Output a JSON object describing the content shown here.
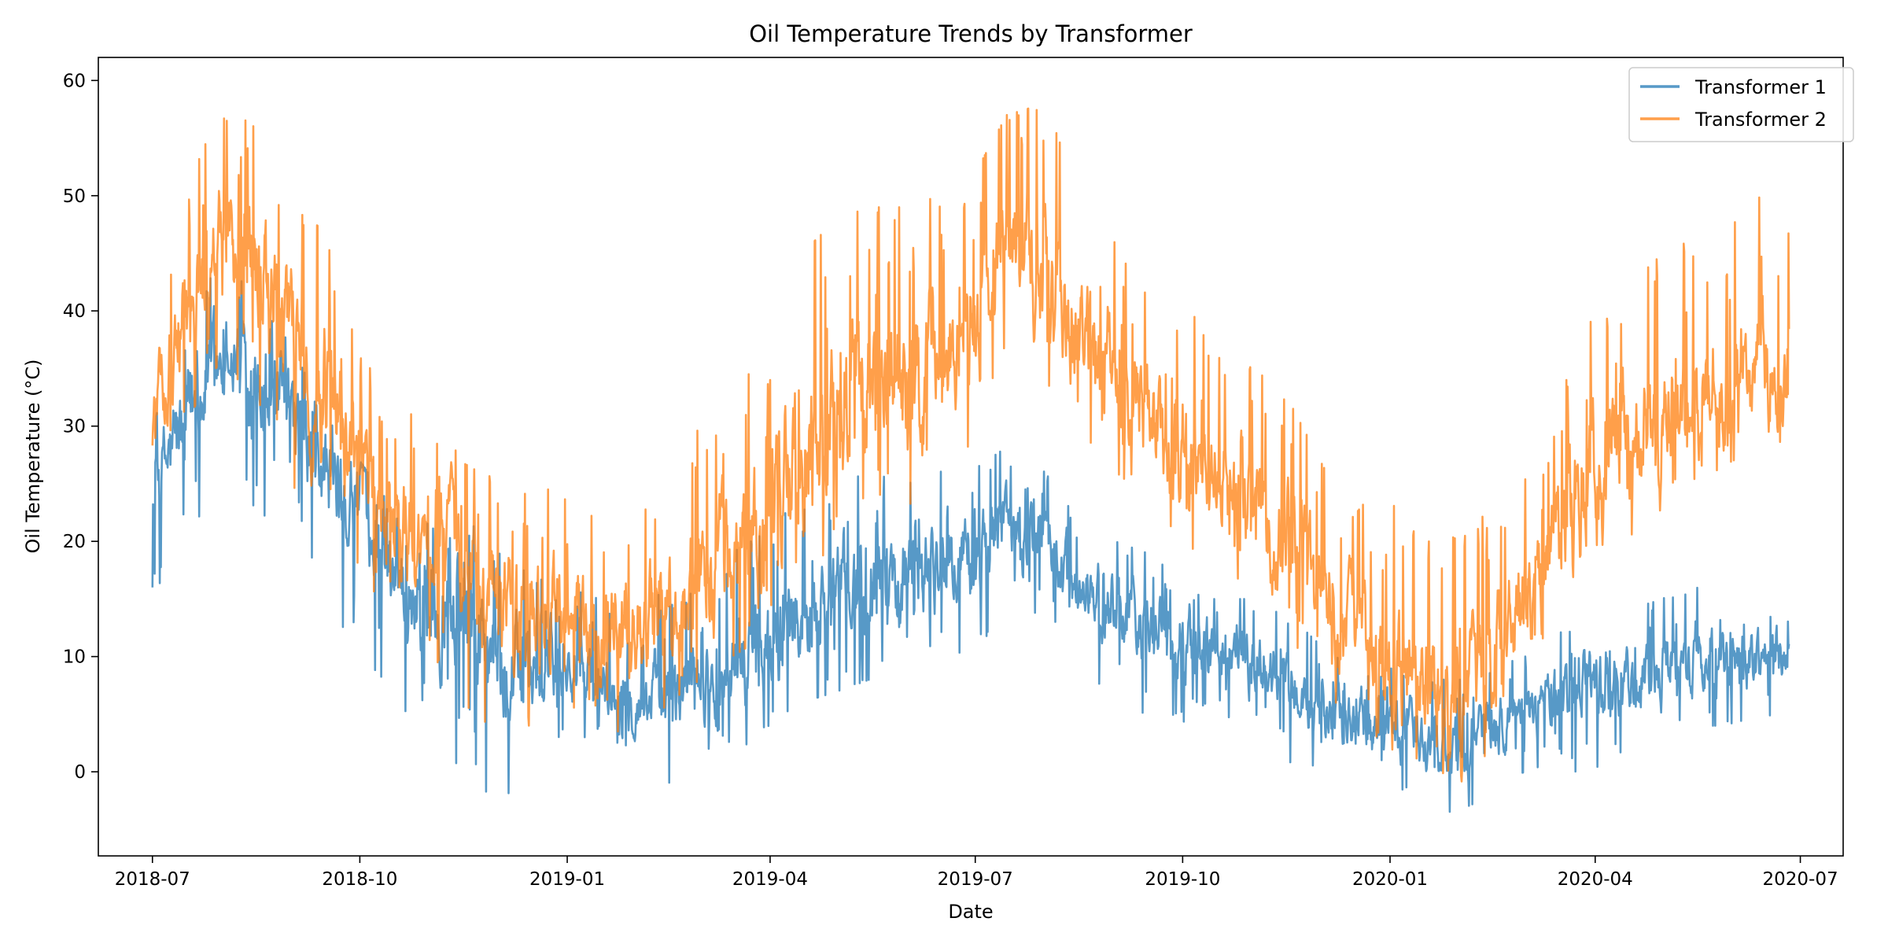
{
  "chart_data": {
    "type": "line",
    "title": "Oil Temperature Trends by Transformer",
    "xlabel": "Date",
    "ylabel": "Oil Temperature (°C)",
    "x_range": [
      "2018-06-07",
      "2020-07-20"
    ],
    "ylim": [
      -7.3,
      62
    ],
    "x_ticks": [
      "2018-07",
      "2018-10",
      "2019-01",
      "2019-04",
      "2019-07",
      "2019-10",
      "2020-01",
      "2020-04",
      "2020-07"
    ],
    "y_ticks": [
      0,
      10,
      20,
      30,
      40,
      50,
      60
    ],
    "grid": false,
    "legend_position": "top-right",
    "series": [
      {
        "name": "Transformer 1",
        "color": "#1f77b4",
        "opacity": 0.75,
        "x": [
          "2018-07-01",
          "2018-07-15",
          "2018-08-01",
          "2018-08-15",
          "2018-09-01",
          "2018-09-15",
          "2018-10-01",
          "2018-10-15",
          "2018-11-01",
          "2018-11-15",
          "2018-12-01",
          "2018-12-15",
          "2019-01-01",
          "2019-01-15",
          "2019-02-01",
          "2019-02-15",
          "2019-03-01",
          "2019-03-15",
          "2019-04-01",
          "2019-04-15",
          "2019-05-01",
          "2019-05-15",
          "2019-06-01",
          "2019-06-15",
          "2019-07-01",
          "2019-07-15",
          "2019-08-01",
          "2019-08-15",
          "2019-09-01",
          "2019-09-15",
          "2019-10-01",
          "2019-10-15",
          "2019-11-01",
          "2019-11-15",
          "2019-12-01",
          "2019-12-15",
          "2020-01-01",
          "2020-01-15",
          "2020-02-01",
          "2020-02-15",
          "2020-03-01",
          "2020-03-15",
          "2020-04-01",
          "2020-04-15",
          "2020-05-01",
          "2020-05-15",
          "2020-06-01",
          "2020-06-15",
          "2020-06-26"
        ],
        "values": [
          24,
          30,
          37,
          34,
          30,
          26,
          23,
          18,
          15,
          13,
          10,
          8,
          9,
          8,
          6,
          7,
          8,
          9,
          11,
          14,
          16,
          17,
          17,
          18,
          19,
          22,
          20,
          16,
          14,
          13,
          11,
          10,
          10,
          8,
          5,
          4,
          4,
          3,
          2,
          4,
          5,
          6,
          8,
          8,
          9,
          10,
          10,
          10,
          10
        ],
        "low": [
          16,
          17,
          30,
          23,
          20,
          13,
          9,
          6,
          4,
          0,
          -4,
          2,
          3,
          3,
          2,
          -1,
          2,
          2,
          3,
          6,
          7,
          8,
          8,
          9,
          10,
          15,
          13,
          10,
          6,
          5,
          4,
          3,
          3,
          1,
          0,
          -2,
          -3,
          -2,
          -4,
          -1,
          0,
          1,
          -1,
          2,
          3,
          4,
          4,
          3,
          3
        ],
        "high": [
          30,
          38,
          45,
          41,
          37,
          31,
          27,
          23,
          22,
          22,
          20,
          17,
          16,
          15,
          14,
          16,
          17,
          19,
          21,
          24,
          25,
          26,
          25,
          26,
          27,
          28,
          26,
          22,
          20,
          19,
          17,
          15,
          15,
          14,
          11,
          9,
          9,
          8,
          8,
          9,
          10,
          12,
          13,
          14,
          15,
          17,
          14,
          14,
          13
        ]
      },
      {
        "name": "Transformer 2",
        "color": "#ff7f0e",
        "opacity": 0.75,
        "x": [
          "2018-07-01",
          "2018-07-15",
          "2018-08-01",
          "2018-08-15",
          "2018-09-01",
          "2018-09-15",
          "2018-10-01",
          "2018-10-15",
          "2018-11-01",
          "2018-11-15",
          "2018-12-01",
          "2018-12-15",
          "2019-01-01",
          "2019-01-15",
          "2019-02-01",
          "2019-02-15",
          "2019-03-01",
          "2019-03-15",
          "2019-04-01",
          "2019-04-15",
          "2019-05-01",
          "2019-05-15",
          "2019-06-01",
          "2019-06-15",
          "2019-07-01",
          "2019-07-15",
          "2019-08-01",
          "2019-08-15",
          "2019-09-01",
          "2019-09-15",
          "2019-10-01",
          "2019-10-15",
          "2019-11-01",
          "2019-11-15",
          "2019-12-01",
          "2019-12-15",
          "2020-01-01",
          "2020-01-15",
          "2020-02-01",
          "2020-02-15",
          "2020-03-01",
          "2020-03-15",
          "2020-04-01",
          "2020-04-15",
          "2020-05-01",
          "2020-05-15",
          "2020-06-01",
          "2020-06-15",
          "2020-06-26"
        ],
        "values": [
          30,
          40,
          45,
          42,
          38,
          33,
          27,
          22,
          20,
          18,
          15,
          13,
          13,
          12,
          12,
          15,
          17,
          20,
          22,
          28,
          32,
          34,
          34,
          36,
          40,
          44,
          43,
          38,
          35,
          32,
          28,
          25,
          24,
          20,
          15,
          12,
          10,
          8,
          5,
          9,
          15,
          20,
          26,
          28,
          30,
          33,
          35,
          36,
          37
        ],
        "low": [
          25,
          30,
          36,
          32,
          25,
          20,
          17,
          14,
          11,
          5,
          4,
          4,
          6,
          4,
          3,
          6,
          8,
          10,
          12,
          17,
          20,
          22,
          23,
          26,
          28,
          34,
          34,
          30,
          26,
          24,
          20,
          18,
          16,
          13,
          7,
          5,
          2,
          1,
          -1,
          2,
          7,
          12,
          16,
          20,
          22,
          25,
          27,
          28,
          29
        ],
        "high": [
          38,
          50,
          58,
          56,
          49,
          47,
          36,
          33,
          30,
          28,
          25,
          24,
          25,
          23,
          24,
          28,
          31,
          33,
          37,
          45,
          48,
          49,
          49,
          50,
          52,
          57,
          58,
          52,
          46,
          44,
          42,
          37,
          35,
          33,
          27,
          22,
          26,
          22,
          20,
          23,
          28,
          32,
          40,
          42,
          45,
          47,
          49,
          50,
          50
        ]
      }
    ]
  }
}
